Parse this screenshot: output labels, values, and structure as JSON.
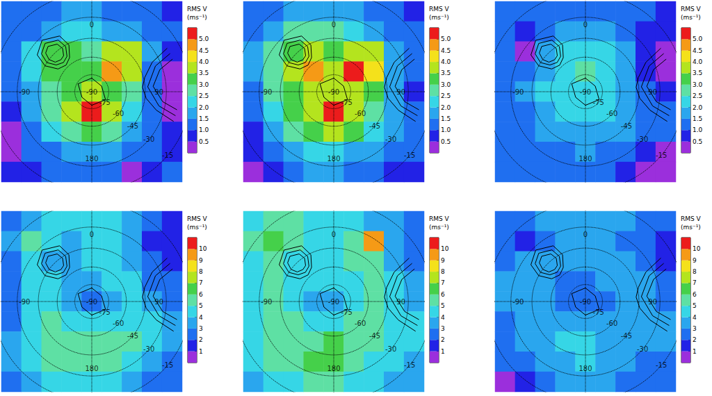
{
  "chart_data": {
    "type": "heatmap",
    "lon_labels": [
      0,
      90,
      180,
      -90
    ],
    "lat_labels": [
      -90,
      -75,
      -60,
      -45,
      -30,
      -15
    ],
    "contours": [
      [
        [
          -44,
          -38
        ],
        [
          -36,
          -41
        ],
        [
          -34,
          -46
        ],
        [
          -38,
          -51
        ],
        [
          -44,
          -52
        ],
        [
          -51,
          -50
        ],
        [
          -53,
          -45
        ],
        [
          -50,
          -40
        ],
        [
          -44,
          -38
        ]
      ],
      [
        [
          -44,
          -35
        ],
        [
          -33,
          -39
        ],
        [
          -30,
          -46
        ],
        [
          -35,
          -53
        ],
        [
          -44,
          -55
        ],
        [
          -53,
          -52
        ],
        [
          -57,
          -45
        ],
        [
          -53,
          -38
        ],
        [
          -44,
          -35
        ]
      ],
      [
        [
          -44,
          -32
        ],
        [
          -30,
          -37
        ],
        [
          -26,
          -46
        ],
        [
          -33,
          -55
        ],
        [
          -44,
          -58
        ],
        [
          -56,
          -55
        ],
        [
          -61,
          -45
        ],
        [
          -56,
          -36
        ],
        [
          -44,
          -32
        ]
      ],
      [
        [
          68,
          -22
        ],
        [
          72,
          -32
        ],
        [
          85,
          -39
        ],
        [
          98,
          -32
        ],
        [
          102,
          -22
        ]
      ],
      [
        [
          64,
          -22
        ],
        [
          68,
          -34
        ],
        [
          85,
          -43
        ],
        [
          102,
          -34
        ],
        [
          106,
          -22
        ]
      ],
      [
        [
          60,
          -22
        ],
        [
          64,
          -35
        ],
        [
          75,
          -44
        ],
        [
          85,
          -47
        ],
        [
          97,
          -44
        ],
        [
          106,
          -35
        ],
        [
          110,
          -22
        ]
      ],
      [
        [
          0,
          -78
        ],
        [
          60,
          -80
        ],
        [
          120,
          -76
        ],
        [
          180,
          -78
        ],
        [
          -120,
          -80
        ],
        [
          -60,
          -76
        ],
        [
          0,
          -78
        ]
      ]
    ],
    "rows": [
      {
        "colorbar": {
          "title": "RMS V",
          "unit": "(ms⁻¹)",
          "range": [
            0,
            5.5
          ],
          "ticks": [
            0.5,
            {
              "value": 1,
              "label": "1.0"
            },
            1.5,
            {
              "value": 2,
              "label": "2.0"
            },
            2.5,
            {
              "value": 3,
              "label": "3.0"
            },
            3.5,
            {
              "value": 4,
              "label": "4.0"
            },
            4.5,
            {
              "value": 5,
              "label": "5.0"
            }
          ],
          "colors": [
            "#9b2fdc",
            "#2222e6",
            "#1f6ff0",
            "#2aa6ee",
            "#36d6e6",
            "#5ee0a4",
            "#45d04a",
            "#b4e41e",
            "#f4e11b",
            "#f59a16",
            "#ec1c1c"
          ]
        },
        "panels": [
          {
            "cells": [
              [
                1.2,
                1.2,
                1.2,
                1.5,
                1.5,
                1.2,
                1.2,
                1.0,
                0.8
              ],
              [
                1.2,
                1.2,
                1.8,
                2.2,
                2.0,
                1.8,
                1.5,
                1.0,
                1.0
              ],
              [
                1.2,
                2.2,
                3.2,
                3.0,
                2.8,
                3.5,
                3.8,
                1.5,
                0.8
              ],
              [
                1.2,
                2.0,
                3.0,
                3.2,
                3.0,
                4.5,
                3.5,
                1.2,
                0.4
              ],
              [
                1.0,
                1.8,
                2.8,
                3.0,
                3.5,
                3.0,
                2.5,
                1.2,
                0.4
              ],
              [
                0.8,
                1.5,
                2.5,
                3.5,
                5.2,
                3.5,
                2.2,
                1.2,
                0.4
              ],
              [
                0.4,
                1.2,
                2.0,
                2.8,
                3.0,
                2.5,
                1.8,
                1.2,
                0.8
              ],
              [
                0.4,
                1.0,
                1.2,
                1.5,
                1.8,
                1.5,
                1.2,
                1.0,
                0.8
              ],
              [
                0.8,
                0.8,
                1.0,
                1.2,
                1.2,
                1.0,
                0.4,
                0.8,
                1.0
              ]
            ]
          },
          {
            "cells": [
              [
                1.2,
                1.2,
                1.5,
                1.8,
                1.8,
                1.5,
                1.2,
                1.0,
                0.8
              ],
              [
                1.2,
                1.8,
                2.5,
                2.8,
                2.5,
                2.2,
                1.8,
                1.2,
                1.0
              ],
              [
                1.5,
                2.5,
                3.2,
                3.5,
                3.2,
                3.8,
                3.5,
                1.8,
                1.0
              ],
              [
                1.5,
                2.8,
                3.5,
                4.5,
                3.5,
                5.2,
                4.0,
                1.8,
                1.0
              ],
              [
                1.2,
                2.5,
                3.2,
                3.5,
                3.5,
                3.8,
                3.0,
                1.5,
                0.8
              ],
              [
                1.0,
                2.2,
                3.0,
                3.8,
                5.2,
                3.8,
                2.8,
                1.5,
                1.0
              ],
              [
                0.8,
                1.8,
                2.5,
                3.0,
                3.5,
                3.0,
                2.2,
                1.5,
                1.2
              ],
              [
                0.8,
                1.2,
                1.8,
                2.0,
                2.2,
                1.8,
                1.5,
                1.2,
                1.0
              ],
              [
                0.4,
                0.8,
                1.2,
                1.5,
                1.5,
                1.2,
                1.0,
                0.8,
                0.8
              ]
            ]
          },
          {
            "cells": [
              [
                1.2,
                1.2,
                1.2,
                1.2,
                1.2,
                1.2,
                1.2,
                1.0,
                0.8
              ],
              [
                1.2,
                0.8,
                1.2,
                1.5,
                1.8,
                1.5,
                1.2,
                0.8,
                0.8
              ],
              [
                1.2,
                0.4,
                1.5,
                2.2,
                2.2,
                2.2,
                1.5,
                0.8,
                0.4
              ],
              [
                1.0,
                1.2,
                1.8,
                2.2,
                2.8,
                2.2,
                1.8,
                0.8,
                0.4
              ],
              [
                1.0,
                1.5,
                2.0,
                2.2,
                2.2,
                2.2,
                1.8,
                1.2,
                0.8
              ],
              [
                1.2,
                1.2,
                1.8,
                2.0,
                2.2,
                2.0,
                1.5,
                1.2,
                1.0
              ],
              [
                1.2,
                1.2,
                1.5,
                1.8,
                1.8,
                1.5,
                1.5,
                1.2,
                1.2
              ],
              [
                1.2,
                1.0,
                1.2,
                1.2,
                1.5,
                1.2,
                1.2,
                0.8,
                0.4
              ],
              [
                1.2,
                1.0,
                1.0,
                1.2,
                1.2,
                1.2,
                0.8,
                0.4,
                0.4
              ]
            ]
          }
        ]
      },
      {
        "colorbar": {
          "title": "RMS V",
          "unit": "(ms⁻¹)",
          "range": [
            0,
            11
          ],
          "ticks": [
            1,
            2,
            3,
            4,
            5,
            6,
            7,
            8,
            9,
            10
          ],
          "colors": [
            "#9b2fdc",
            "#2222e6",
            "#1f6ff0",
            "#2aa6ee",
            "#36d6e6",
            "#5ee0a4",
            "#45d04a",
            "#b4e41e",
            "#f4e11b",
            "#f59a16",
            "#ec1c1c"
          ]
        },
        "panels": [
          {
            "cells": [
              [
                2.5,
                3.5,
                4.5,
                4.5,
                4.5,
                4.5,
                3.5,
                2.5,
                1.5
              ],
              [
                3.5,
                5.5,
                4.5,
                3.5,
                4.5,
                4.5,
                3.5,
                1.5,
                1.5
              ],
              [
                2.5,
                4.5,
                3.5,
                3.5,
                4.5,
                4.5,
                3.5,
                2.5,
                1.5
              ],
              [
                2.5,
                4.5,
                4.5,
                3.5,
                3.5,
                4.5,
                4.5,
                2.5,
                2.5
              ],
              [
                2.5,
                4.5,
                4.5,
                3.5,
                2.5,
                3.5,
                4.5,
                3.5,
                2.5
              ],
              [
                2.5,
                4.5,
                5.5,
                4.5,
                4.5,
                4.5,
                4.5,
                4.5,
                3.5
              ],
              [
                3.5,
                4.5,
                5.5,
                5.5,
                5.5,
                5.5,
                5.5,
                4.5,
                3.5
              ],
              [
                3.5,
                4.5,
                5.5,
                5.5,
                5.5,
                5.5,
                4.5,
                3.5,
                2.5
              ],
              [
                2.5,
                3.5,
                4.5,
                4.5,
                4.5,
                4.5,
                3.5,
                2.5,
                2.5
              ]
            ]
          },
          {
            "cells": [
              [
                4.5,
                5.5,
                5.5,
                4.5,
                4.5,
                4.5,
                3.5,
                3.5,
                2.5
              ],
              [
                5.5,
                6.5,
                5.5,
                4.5,
                4.5,
                5.5,
                9.5,
                3.5,
                2.5
              ],
              [
                4.5,
                5.5,
                4.5,
                4.5,
                4.5,
                5.5,
                5.5,
                3.5,
                2.5
              ],
              [
                4.5,
                5.5,
                4.5,
                4.5,
                4.5,
                4.5,
                5.5,
                4.5,
                3.5
              ],
              [
                4.5,
                5.5,
                4.5,
                3.5,
                3.5,
                4.5,
                5.5,
                4.5,
                3.5
              ],
              [
                4.5,
                5.5,
                5.5,
                4.5,
                4.5,
                5.5,
                5.5,
                4.5,
                4.5
              ],
              [
                4.5,
                5.5,
                5.5,
                5.5,
                6.5,
                5.5,
                5.5,
                4.5,
                4.5
              ],
              [
                4.5,
                5.5,
                5.5,
                6.5,
                6.5,
                5.5,
                4.5,
                4.5,
                3.5
              ],
              [
                3.5,
                4.5,
                4.5,
                5.5,
                5.5,
                4.5,
                4.5,
                3.5,
                3.5
              ]
            ]
          },
          {
            "cells": [
              [
                2.5,
                2.5,
                3.5,
                3.5,
                3.5,
                3.5,
                3.5,
                2.5,
                2.5
              ],
              [
                2.5,
                1.5,
                2.5,
                3.5,
                3.5,
                3.5,
                2.5,
                2.5,
                1.5
              ],
              [
                2.5,
                3.5,
                3.5,
                3.5,
                3.5,
                3.5,
                3.5,
                2.5,
                1.5
              ],
              [
                3.5,
                3.5,
                3.5,
                2.5,
                2.5,
                3.5,
                3.5,
                3.5,
                2.5
              ],
              [
                3.5,
                3.5,
                3.5,
                2.5,
                2.5,
                2.5,
                3.5,
                3.5,
                2.5
              ],
              [
                2.5,
                3.5,
                3.5,
                3.5,
                3.5,
                3.5,
                3.5,
                3.5,
                3.5
              ],
              [
                2.5,
                3.5,
                3.5,
                4.5,
                4.5,
                3.5,
                3.5,
                3.5,
                3.5
              ],
              [
                2.5,
                2.5,
                3.5,
                3.5,
                4.5,
                3.5,
                3.5,
                2.5,
                2.5
              ],
              [
                0.6,
                1.5,
                2.5,
                3.5,
                3.5,
                3.5,
                2.5,
                2.5,
                2.5
              ]
            ]
          }
        ]
      }
    ]
  }
}
